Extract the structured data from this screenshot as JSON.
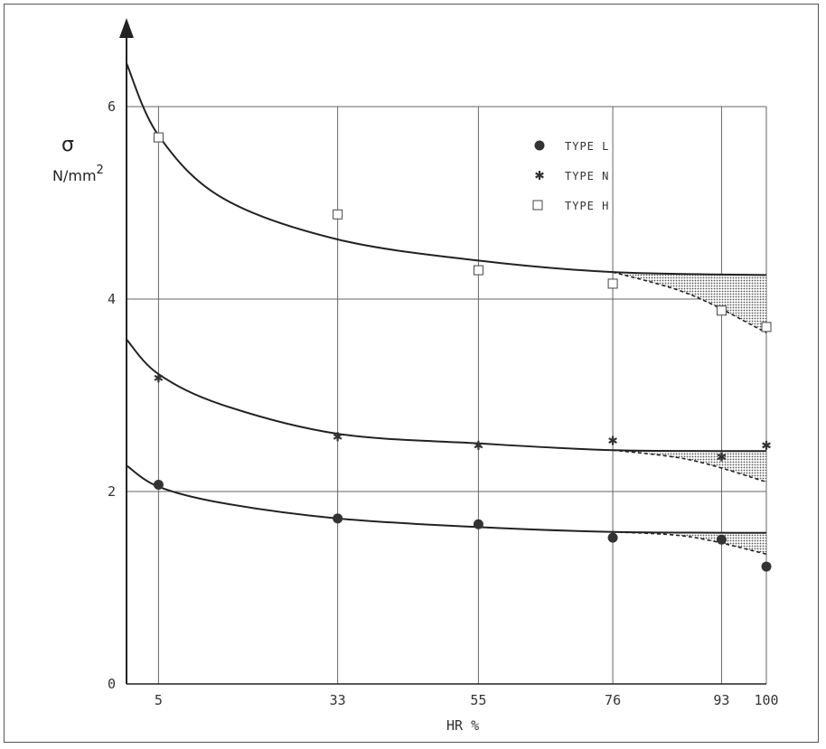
{
  "chart_data": {
    "type": "scatter",
    "title": "",
    "xlabel": "HR %",
    "ylabel_symbol": "σ",
    "ylabel_unit": "N/mm",
    "ylabel_unit_sup": "2",
    "x_ticks": [
      5,
      33,
      55,
      76,
      93,
      100
    ],
    "y_ticks": [
      0,
      2,
      4,
      6
    ],
    "xlim": [
      0,
      100
    ],
    "ylim": [
      0,
      6
    ],
    "grid": true,
    "legend_position": "top-right",
    "series": [
      {
        "name": "TYPE L",
        "marker": "circle",
        "points": [
          [
            5,
            2.07
          ],
          [
            33,
            1.72
          ],
          [
            55,
            1.66
          ],
          [
            76,
            1.52
          ],
          [
            93,
            1.5
          ],
          [
            100,
            1.22
          ]
        ],
        "fit_curve": [
          [
            0,
            2.27
          ],
          [
            5,
            2.05
          ],
          [
            15,
            1.88
          ],
          [
            33,
            1.72
          ],
          [
            55,
            1.63
          ],
          [
            76,
            1.58
          ],
          [
            100,
            1.57
          ]
        ],
        "dashed_curve": [
          [
            76,
            1.58
          ],
          [
            88,
            1.53
          ],
          [
            100,
            1.35
          ]
        ]
      },
      {
        "name": "TYPE N",
        "marker": "star",
        "points": [
          [
            5,
            3.18
          ],
          [
            33,
            2.57
          ],
          [
            55,
            2.48
          ],
          [
            76,
            2.53
          ],
          [
            93,
            2.36
          ],
          [
            100,
            2.48
          ]
        ],
        "fit_curve": [
          [
            0,
            3.58
          ],
          [
            5,
            3.22
          ],
          [
            15,
            2.9
          ],
          [
            33,
            2.6
          ],
          [
            55,
            2.5
          ],
          [
            76,
            2.43
          ],
          [
            100,
            2.42
          ]
        ],
        "dashed_curve": [
          [
            76,
            2.43
          ],
          [
            88,
            2.33
          ],
          [
            100,
            2.1
          ]
        ]
      },
      {
        "name": "TYPE H",
        "marker": "square",
        "points": [
          [
            5,
            5.68
          ],
          [
            33,
            4.88
          ],
          [
            55,
            4.3
          ],
          [
            76,
            4.16
          ],
          [
            93,
            3.88
          ],
          [
            100,
            3.71
          ]
        ],
        "fit_curve": [
          [
            0,
            6.45
          ],
          [
            5,
            5.7
          ],
          [
            15,
            5.05
          ],
          [
            33,
            4.62
          ],
          [
            55,
            4.4
          ],
          [
            76,
            4.28
          ],
          [
            100,
            4.25
          ]
        ],
        "dashed_curve": [
          [
            76,
            4.28
          ],
          [
            88,
            4.05
          ],
          [
            100,
            3.65
          ]
        ]
      }
    ]
  }
}
